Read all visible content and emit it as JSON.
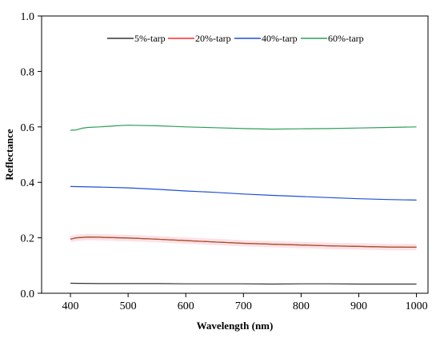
{
  "chart_data": {
    "type": "line",
    "xlabel": "Wavelength (nm)",
    "ylabel": "Reflectance",
    "xlim": [
      350,
      1020
    ],
    "ylim": [
      0.0,
      1.0
    ],
    "xticks": [
      400,
      500,
      600,
      700,
      800,
      900,
      1000
    ],
    "yticks": [
      0.0,
      0.2,
      0.4,
      0.6,
      0.8,
      1.0
    ],
    "grid": false,
    "legend_position": "top-center",
    "series": [
      {
        "name": "5%-tarp",
        "color": "#333333",
        "x": [
          400,
          450,
          500,
          550,
          600,
          650,
          700,
          750,
          800,
          850,
          900,
          950,
          1000
        ],
        "y": [
          0.036,
          0.035,
          0.035,
          0.035,
          0.034,
          0.034,
          0.034,
          0.033,
          0.034,
          0.034,
          0.033,
          0.033,
          0.033
        ]
      },
      {
        "name": "20%-tarp",
        "color": "#ff2a2a",
        "x": [
          400,
          410,
          430,
          450,
          500,
          550,
          600,
          650,
          700,
          750,
          800,
          850,
          900,
          950,
          1000
        ],
        "y": [
          0.195,
          0.2,
          0.203,
          0.202,
          0.199,
          0.195,
          0.19,
          0.185,
          0.18,
          0.177,
          0.174,
          0.171,
          0.169,
          0.167,
          0.166
        ]
      },
      {
        "name": "40%-tarp",
        "color": "#1f4fd6",
        "x": [
          400,
          450,
          500,
          550,
          600,
          650,
          700,
          750,
          800,
          850,
          900,
          950,
          1000
        ],
        "y": [
          0.385,
          0.383,
          0.38,
          0.375,
          0.369,
          0.364,
          0.358,
          0.353,
          0.349,
          0.345,
          0.341,
          0.338,
          0.336
        ]
      },
      {
        "name": "60%-tarp",
        "color": "#2e9e5a",
        "x": [
          400,
          410,
          420,
          430,
          450,
          480,
          500,
          550,
          600,
          650,
          700,
          750,
          800,
          850,
          900,
          950,
          1000
        ],
        "y": [
          0.588,
          0.589,
          0.595,
          0.598,
          0.6,
          0.604,
          0.606,
          0.604,
          0.6,
          0.597,
          0.594,
          0.592,
          0.593,
          0.594,
          0.596,
          0.598,
          0.6
        ]
      }
    ],
    "overlay": {
      "color": "#a0522d",
      "x": [
        400,
        410,
        430,
        450,
        500,
        550,
        600,
        650,
        700,
        750,
        800,
        850,
        900,
        950,
        1000
      ],
      "y": [
        0.195,
        0.2,
        0.203,
        0.202,
        0.199,
        0.195,
        0.19,
        0.185,
        0.18,
        0.177,
        0.174,
        0.171,
        0.169,
        0.167,
        0.166
      ]
    }
  }
}
